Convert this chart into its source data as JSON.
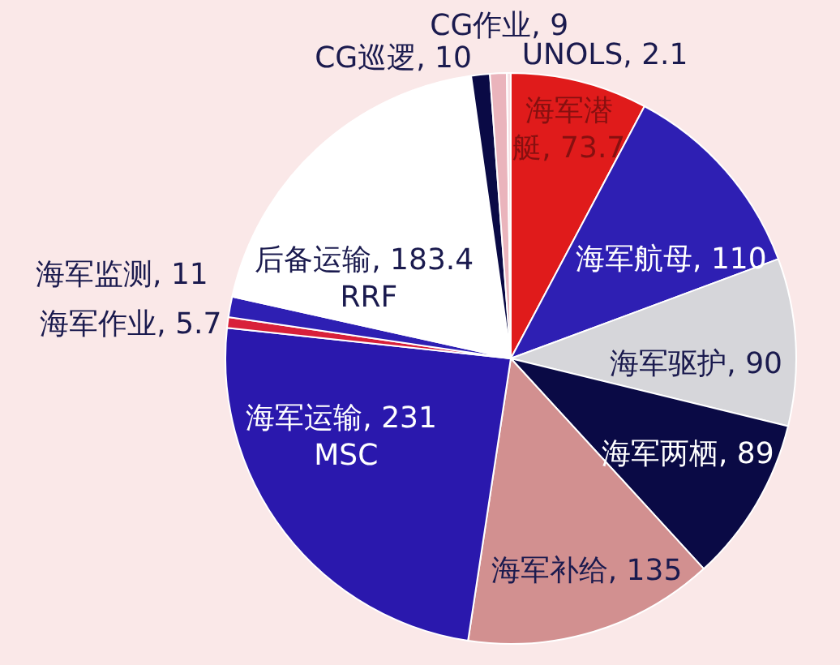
{
  "chart_data": {
    "type": "pie",
    "categories": [
      "海军潜艇",
      "海军航母",
      "海军驱护",
      "海军两栖",
      "海军补给",
      "海军运输",
      "海军作业",
      "海军监测",
      "后备运输",
      "CG巡逻",
      "CG作业",
      "UNOLS"
    ],
    "values": [
      73.7,
      110,
      90,
      89,
      135,
      231,
      5.7,
      11,
      183.4,
      10,
      9,
      2.1
    ],
    "value_labels": [
      "73.7",
      "110",
      "90",
      "89",
      "135",
      "231 MSC",
      "5.7",
      "11",
      "183.4 RRF",
      "10",
      "9",
      "2.1"
    ],
    "colors": [
      "#e01b1b",
      "#2e1fb3",
      "#d6d6da",
      "#0a0a45",
      "#d29090",
      "#2a18ad",
      "#d8203a",
      "#2e1fb3",
      "#ffffff",
      "#0a0a45",
      "#eab4bc",
      "#f7e0e4"
    ]
  }
}
